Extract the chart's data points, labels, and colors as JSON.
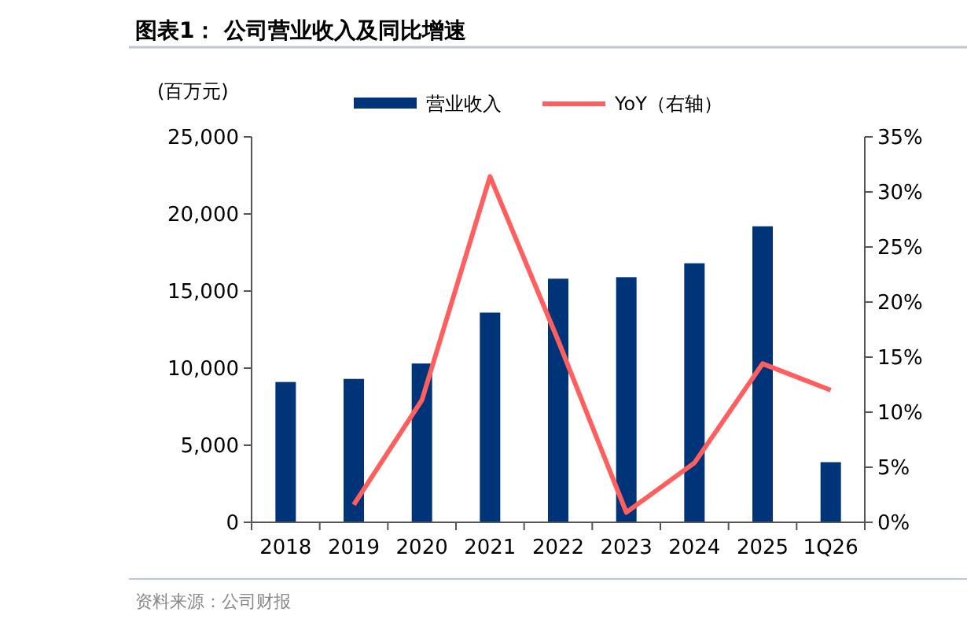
{
  "chart_data": {
    "type": "bar",
    "title": "图表1：  公司营业收入及同比增速",
    "ylabel": "(百万元)",
    "annotations": [
      "资料来源：公司财报"
    ],
    "categories": [
      "2018",
      "2019",
      "2020",
      "2021",
      "2022",
      "2023",
      "2024",
      "2025",
      "1Q26"
    ],
    "series": [
      {
        "name": "营业收入",
        "color": "#003478",
        "values": [
          9100,
          9300,
          10300,
          13600,
          15800,
          15900,
          16800,
          19200,
          3900
        ]
      },
      {
        "name": "YoY（右轴）",
        "type": "line",
        "axis": "y2",
        "color": "#ff5f5f",
        "values": [
          null,
          1.6,
          11.1,
          31.4,
          16.5,
          0.9,
          5.4,
          14.4,
          12.0
        ]
      }
    ],
    "ylim": [
      0,
      25000
    ],
    "yticks": [
      {
        "value": 0,
        "label": "0"
      },
      {
        "value": 5000,
        "label": "5,000"
      },
      {
        "value": 10000,
        "label": "10,000"
      },
      {
        "value": 15000,
        "label": "15,000"
      },
      {
        "value": 20000,
        "label": "20,000"
      },
      {
        "value": 25000,
        "label": "25,000"
      }
    ],
    "y2lim": [
      0,
      35
    ],
    "y2ticks": [
      {
        "value": 0,
        "label": "0%"
      },
      {
        "value": 5,
        "label": "5%"
      },
      {
        "value": 10,
        "label": "10%"
      },
      {
        "value": 15,
        "label": "15%"
      },
      {
        "value": 20,
        "label": "20%"
      },
      {
        "value": 25,
        "label": "25%"
      },
      {
        "value": 30,
        "label": "30%"
      },
      {
        "value": 35,
        "label": "35%"
      }
    ],
    "legend": "top",
    "grid": false,
    "marker": "none",
    "line_style": "solid"
  }
}
